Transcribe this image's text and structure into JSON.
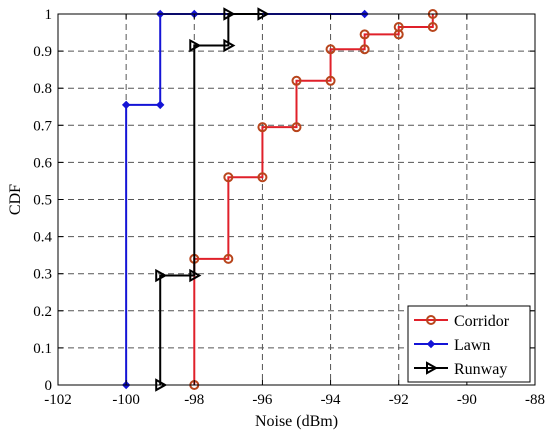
{
  "chart_data": {
    "type": "line",
    "step": true,
    "xlabel": "Noise (dBm)",
    "ylabel": "CDF",
    "xlim": [
      -102,
      -88
    ],
    "ylim": [
      0,
      1
    ],
    "xticks": [
      -102,
      -100,
      -98,
      -96,
      -94,
      -92,
      -90,
      -88
    ],
    "yticks": [
      0,
      0.1,
      0.2,
      0.3,
      0.4,
      0.5,
      0.6,
      0.7,
      0.8,
      0.9,
      1
    ],
    "grid": true,
    "legend_position": "bottom-right",
    "series": [
      {
        "name": "Corridor",
        "color": "#e0202a",
        "marker": "circle",
        "marker_color": "#b8451c",
        "points": [
          [
            -98,
            0
          ],
          [
            -98,
            0.34
          ],
          [
            -97,
            0.34
          ],
          [
            -97,
            0.56
          ],
          [
            -96,
            0.56
          ],
          [
            -96,
            0.695
          ],
          [
            -95,
            0.695
          ],
          [
            -95,
            0.82
          ],
          [
            -94,
            0.82
          ],
          [
            -94,
            0.905
          ],
          [
            -93,
            0.905
          ],
          [
            -93,
            0.945
          ],
          [
            -92,
            0.945
          ],
          [
            -92,
            0.965
          ],
          [
            -91,
            0.965
          ],
          [
            -91,
            1.0
          ]
        ]
      },
      {
        "name": "Lawn",
        "color": "#1414d6",
        "marker": "diamond",
        "marker_color": "#1414d6",
        "points": [
          [
            -100,
            0
          ],
          [
            -100,
            0.755
          ],
          [
            -99,
            0.755
          ],
          [
            -99,
            1.0
          ],
          [
            -98,
            1.0
          ],
          [
            -93,
            1.0
          ]
        ]
      },
      {
        "name": "Runway",
        "color": "#000000",
        "marker": "triangle-right",
        "marker_color": "#000000",
        "points": [
          [
            -99,
            0
          ],
          [
            -99,
            0.295
          ],
          [
            -98,
            0.295
          ],
          [
            -98,
            0.915
          ],
          [
            -97,
            0.915
          ],
          [
            -97,
            1.0
          ],
          [
            -96,
            1.0
          ]
        ]
      }
    ]
  }
}
